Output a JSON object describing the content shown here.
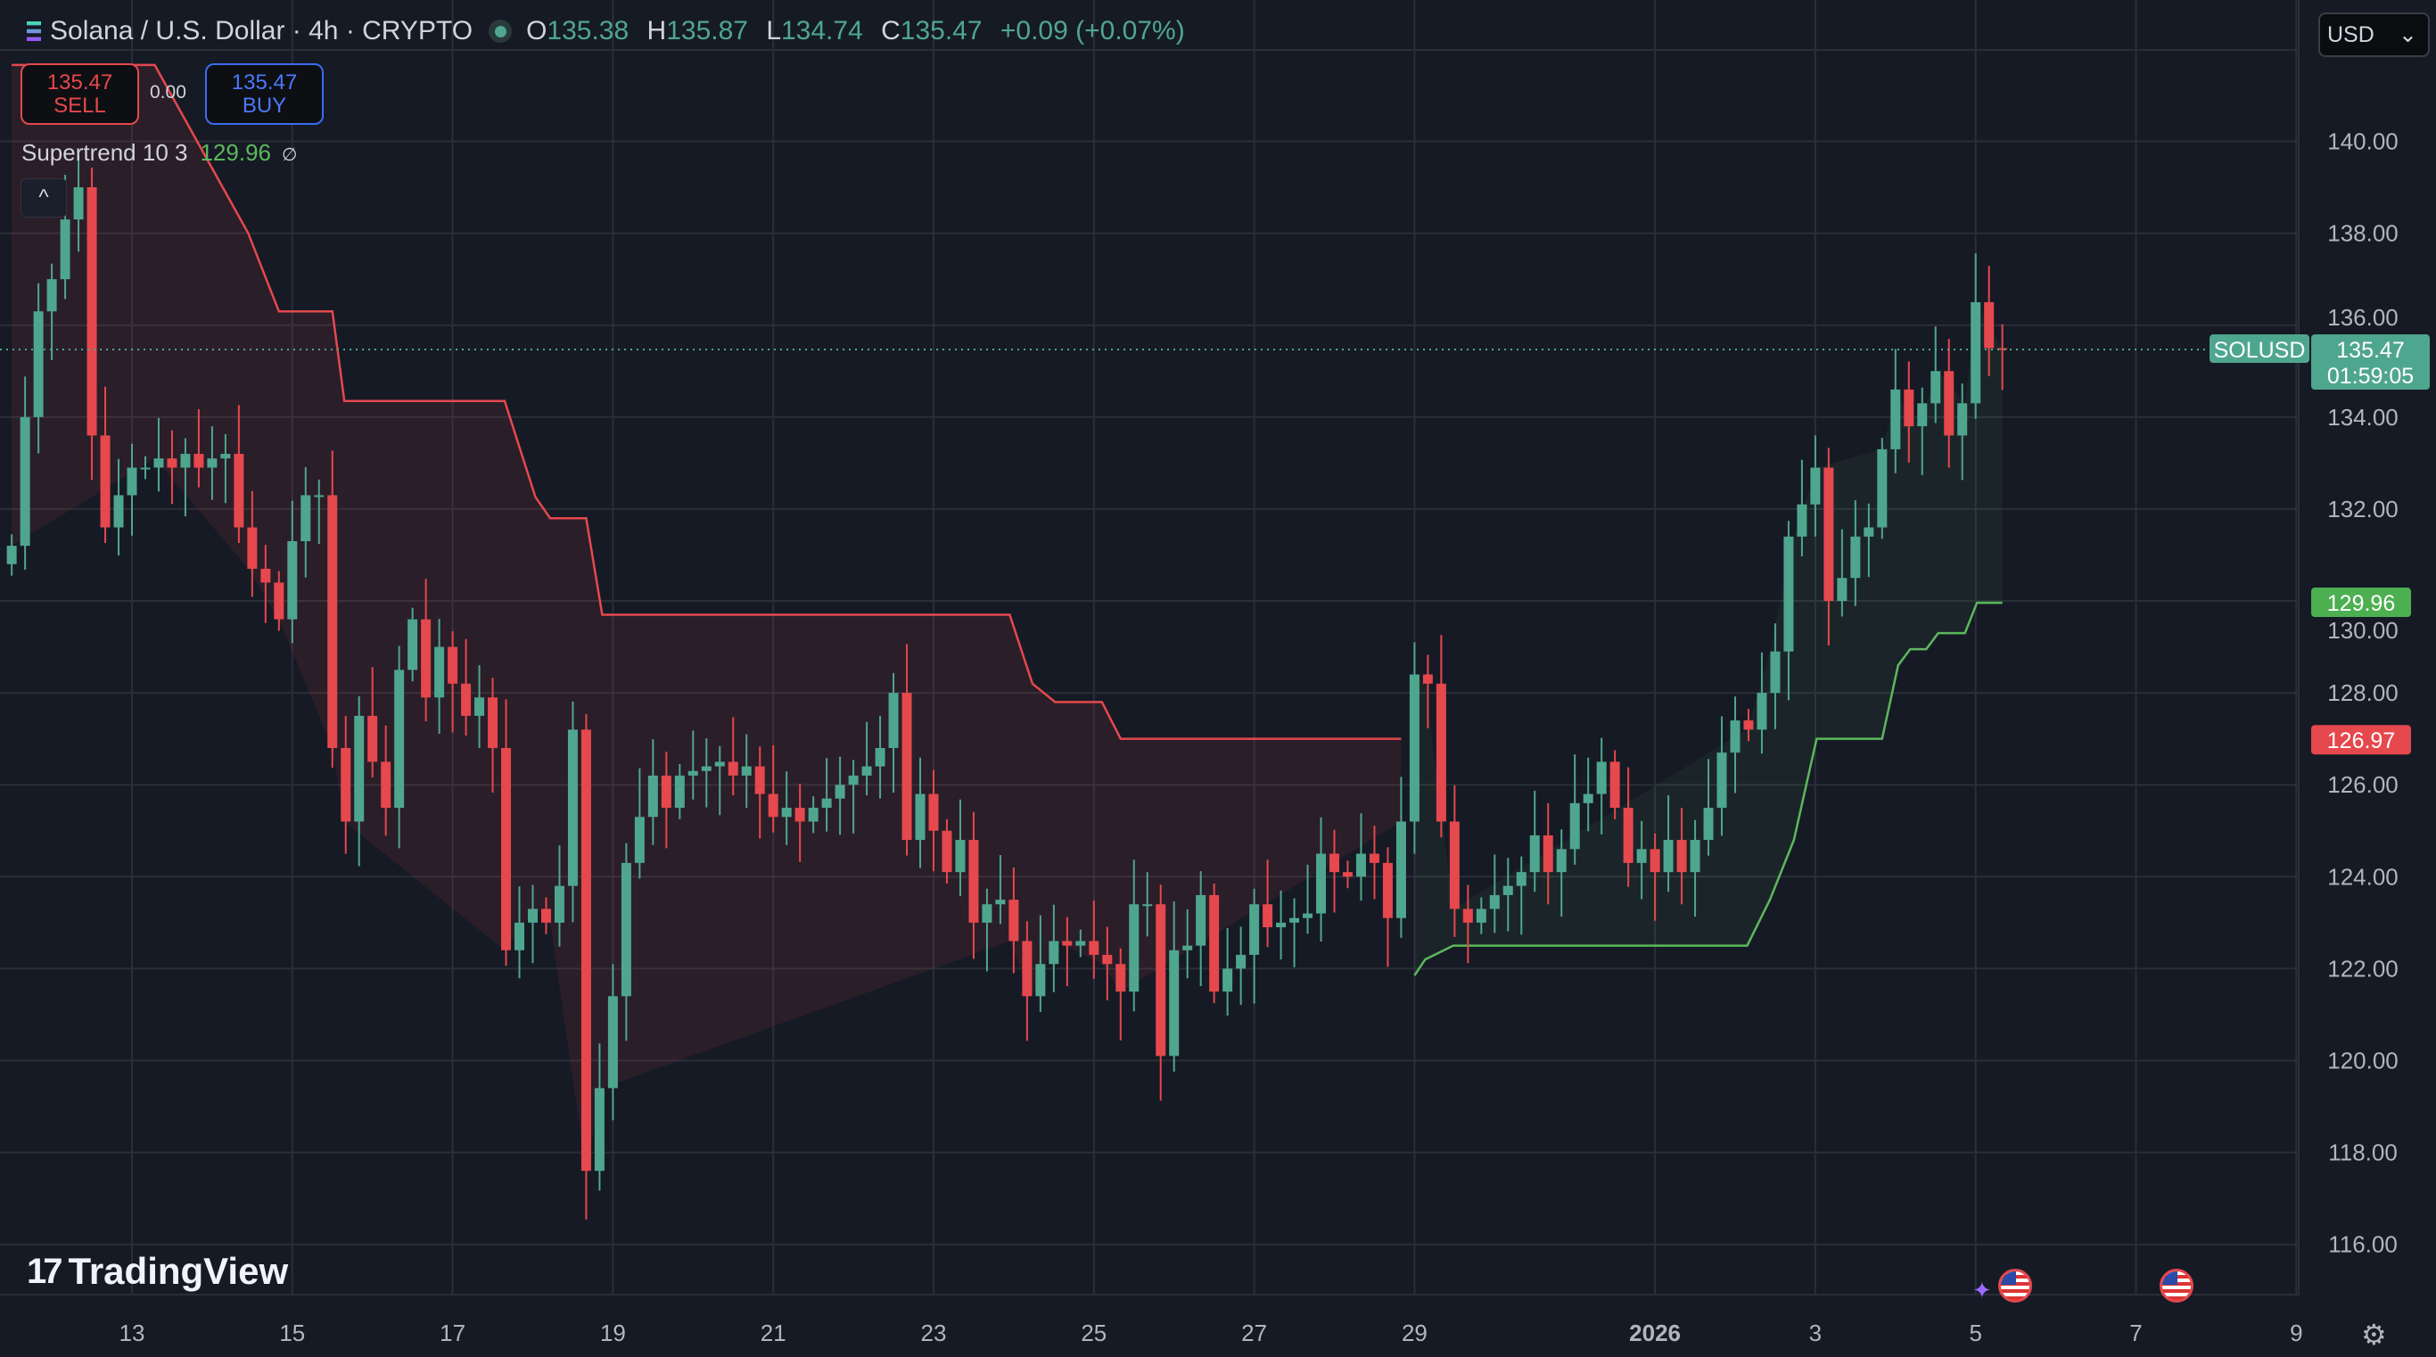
{
  "header": {
    "symbol": "Solana / U.S. Dollar · 4h · CRYPTO",
    "open_label": "O",
    "open": "135.38",
    "high_label": "H",
    "high": "135.87",
    "low_label": "L",
    "low": "134.74",
    "close_label": "C",
    "close": "135.47",
    "change": "+0.09 (+0.07%)"
  },
  "trade": {
    "sell_price": "135.47",
    "sell_label": "SELL",
    "spread": "0.00",
    "buy_price": "135.47",
    "buy_label": "BUY"
  },
  "indicator": {
    "name": "Supertrend 10 3",
    "value": "129.96",
    "icon": "∅",
    "collapse_icon": "^"
  },
  "currency": {
    "selected": "USD",
    "chevron": "⌄"
  },
  "branding": {
    "logo_mark": "17",
    "logo_text": "TradingView"
  },
  "labels": {
    "symbol_tag": "SOLUSD",
    "last_price": "135.47",
    "countdown": "01:59:05",
    "supertrend_up": "129.96",
    "supertrend_down": "126.97",
    "gear_icon": "⚙",
    "spark_icon": "✦"
  },
  "colors": {
    "up": "#4fa68e",
    "down": "#e5484d",
    "st_up": "#5cb85c",
    "st_down": "#e5484d",
    "bg": "#161a25",
    "grid": "#2a2e39"
  },
  "chart_data": {
    "type": "candlestick",
    "title": "Solana / U.S. Dollar · 4h · CRYPTO",
    "ylim": [
      115,
      142.5
    ],
    "y_ticks": [
      "140.00",
      "138.00",
      "136.00",
      "134.00",
      "132.00",
      "130.00",
      "128.00",
      "126.00",
      "124.00",
      "122.00",
      "120.00",
      "118.00",
      "116.00"
    ],
    "y_tick_values": [
      140,
      138,
      136,
      134,
      132,
      130,
      128,
      126,
      124,
      122,
      120,
      118,
      116
    ],
    "x_ticks": [
      {
        "label": "13",
        "day": 0
      },
      {
        "label": "15",
        "day": 2
      },
      {
        "label": "17",
        "day": 4
      },
      {
        "label": "19",
        "day": 6
      },
      {
        "label": "21",
        "day": 8
      },
      {
        "label": "23",
        "day": 10
      },
      {
        "label": "25",
        "day": 12
      },
      {
        "label": "27",
        "day": 14
      },
      {
        "label": "29",
        "day": 16
      },
      {
        "label": "2026",
        "day": 19
      },
      {
        "label": "3",
        "day": 21
      },
      {
        "label": "5",
        "day": 23
      },
      {
        "label": "7",
        "day": 25
      },
      {
        "label": "9",
        "day": 27
      }
    ],
    "bars_per_day": 6,
    "first_bar_day_offset": -1.5,
    "closes": [
      131.2,
      134.0,
      136.3,
      137.0,
      138.3,
      139.0,
      133.6,
      131.6,
      132.3,
      132.9,
      132.9,
      133.1,
      132.9,
      133.2,
      132.9,
      133.1,
      133.2,
      131.6,
      130.7,
      130.4,
      129.6,
      131.3,
      132.3,
      132.3,
      126.8,
      125.2,
      127.5,
      126.5,
      125.5,
      128.5,
      129.6,
      127.9,
      129.0,
      128.2,
      127.5,
      127.9,
      126.8,
      122.4,
      123.0,
      123.3,
      123.0,
      123.8,
      127.2,
      117.6,
      119.4,
      121.4,
      124.3,
      125.3,
      126.2,
      125.5,
      126.2,
      126.3,
      126.4,
      126.5,
      126.2,
      126.4,
      125.8,
      125.3,
      125.5,
      125.2,
      125.5,
      125.7,
      126.0,
      126.2,
      126.4,
      126.8,
      128.0,
      124.8,
      125.8,
      125.0,
      124.1,
      124.8,
      123.0,
      123.4,
      123.5,
      122.6,
      121.4,
      122.1,
      122.6,
      122.5,
      122.6,
      122.3,
      122.1,
      121.5,
      123.4,
      123.4,
      120.1,
      122.4,
      122.5,
      123.6,
      121.5,
      122.0,
      122.3,
      123.4,
      122.9,
      123.0,
      123.1,
      123.2,
      124.5,
      124.1,
      124.0,
      124.5,
      124.3,
      123.1,
      125.2,
      128.4,
      128.2,
      125.2,
      123.3,
      123.0,
      123.3,
      123.6,
      123.8,
      124.1,
      124.9,
      124.1,
      124.6,
      125.6,
      125.8,
      126.5,
      125.5,
      124.3,
      124.6,
      124.1,
      124.8,
      124.1,
      124.8,
      125.5,
      126.7,
      127.4,
      127.2,
      128.0,
      128.9,
      131.4,
      132.1,
      132.9,
      130.0,
      130.5,
      131.4,
      131.6,
      133.3,
      134.6,
      133.8,
      134.3,
      135.0,
      133.6,
      134.3,
      136.5,
      135.5,
      135.47
    ],
    "supertrend": {
      "down": [
        [
          0,
          141.66
        ],
        [
          10.7,
          141.66
        ],
        [
          17.7,
          138.0
        ],
        [
          20,
          136.3
        ],
        [
          24,
          136.3
        ],
        [
          24.9,
          134.35
        ],
        [
          36.9,
          134.35
        ],
        [
          39.2,
          132.26
        ],
        [
          40.3,
          131.8
        ],
        [
          43,
          131.8
        ],
        [
          44.2,
          129.7
        ],
        [
          74.7,
          129.7
        ],
        [
          76.4,
          128.2
        ],
        [
          78.1,
          127.8
        ],
        [
          81.6,
          127.8
        ],
        [
          83,
          127.0
        ],
        [
          104,
          127.0
        ]
      ],
      "up": [
        [
          105,
          121.85
        ],
        [
          105.8,
          122.2
        ],
        [
          107.9,
          122.5
        ],
        [
          129.9,
          122.5
        ],
        [
          131.6,
          123.5
        ],
        [
          133.4,
          124.8
        ],
        [
          135.1,
          127.0
        ],
        [
          140,
          127.0
        ],
        [
          141.2,
          128.6
        ],
        [
          142.1,
          128.95
        ],
        [
          143.3,
          128.95
        ],
        [
          144.2,
          129.3
        ],
        [
          146.2,
          129.3
        ],
        [
          147.1,
          129.96
        ],
        [
          149,
          129.96
        ]
      ]
    },
    "last_price": 135.47
  }
}
